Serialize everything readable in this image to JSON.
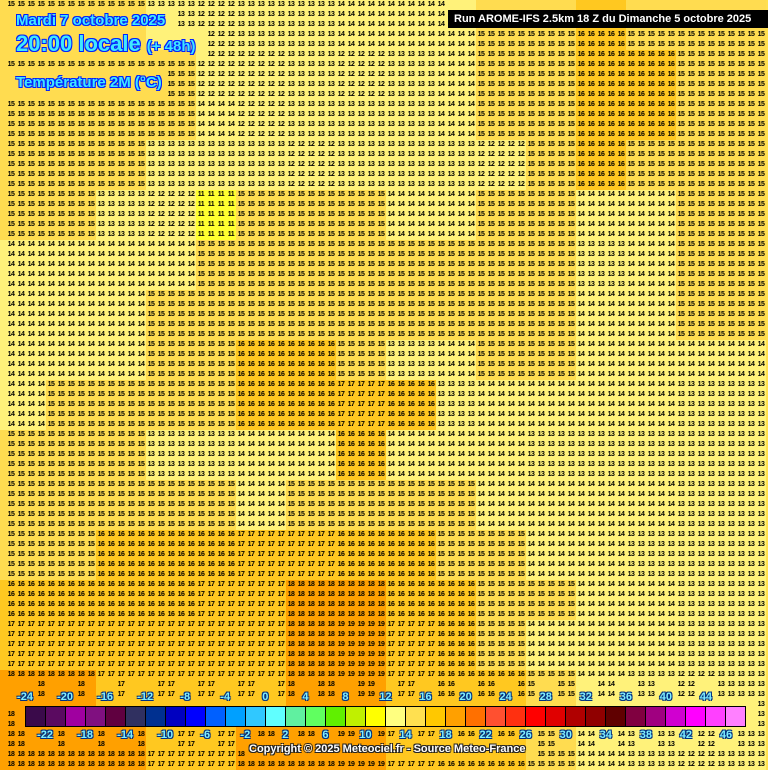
{
  "header": {
    "date": "Mardi 7 octobre 2025",
    "time": "20:00 locale",
    "offset": "(+ 48h)",
    "parameter": "Température 2M (°C)",
    "run": "Run AROME-IFS 2.5km 18 Z du Dimanche 5 octobre 2025"
  },
  "temperature_field_approx": [
    [
      15,
      15,
      15,
      13,
      12,
      13,
      13,
      14,
      14,
      14,
      15,
      15,
      16,
      15,
      15,
      15
    ],
    [
      15,
      15,
      15,
      15,
      12,
      12,
      13,
      12,
      13,
      14,
      15,
      15,
      16,
      16,
      15,
      15
    ],
    [
      15,
      15,
      15,
      15,
      14,
      12,
      13,
      13,
      13,
      14,
      15,
      15,
      16,
      16,
      15,
      15
    ],
    [
      15,
      15,
      15,
      13,
      13,
      13,
      12,
      13,
      13,
      13,
      12,
      15,
      16,
      15,
      15,
      15
    ],
    [
      15,
      15,
      13,
      12,
      11,
      15,
      15,
      15,
      14,
      14,
      15,
      15,
      14,
      14,
      15,
      15
    ],
    [
      14,
      14,
      14,
      14,
      15,
      15,
      15,
      15,
      15,
      15,
      15,
      15,
      13,
      14,
      15,
      15
    ],
    [
      14,
      14,
      14,
      15,
      15,
      15,
      15,
      15,
      15,
      15,
      15,
      15,
      14,
      14,
      15,
      15
    ],
    [
      14,
      14,
      14,
      15,
      15,
      16,
      16,
      15,
      13,
      14,
      15,
      15,
      14,
      14,
      14,
      14
    ],
    [
      14,
      15,
      15,
      15,
      15,
      16,
      16,
      17,
      16,
      13,
      14,
      14,
      14,
      14,
      13,
      13
    ],
    [
      15,
      15,
      15,
      13,
      13,
      14,
      14,
      16,
      14,
      14,
      14,
      13,
      13,
      13,
      13,
      13
    ],
    [
      15,
      15,
      15,
      15,
      15,
      14,
      15,
      15,
      15,
      15,
      14,
      14,
      14,
      14,
      13,
      13
    ],
    [
      15,
      15,
      16,
      16,
      16,
      17,
      17,
      16,
      16,
      15,
      15,
      14,
      14,
      13,
      13,
      13
    ],
    [
      16,
      16,
      16,
      16,
      17,
      17,
      18,
      18,
      16,
      16,
      15,
      15,
      14,
      14,
      13,
      13
    ],
    [
      17,
      17,
      17,
      17,
      17,
      17,
      18,
      19,
      17,
      16,
      15,
      14,
      14,
      14,
      13,
      13
    ],
    [
      18,
      18,
      17,
      17,
      17,
      17,
      18,
      19,
      17,
      16,
      16,
      15,
      14,
      13,
      12,
      13
    ],
    [
      18,
      18,
      18,
      17,
      17,
      18,
      18,
      19,
      17,
      16,
      16,
      15,
      14,
      13,
      12,
      13
    ]
  ],
  "legend": {
    "unit": "°C",
    "bins": [
      -24,
      -22,
      -20,
      -18,
      -16,
      -14,
      -12,
      -10,
      -8,
      -6,
      -4,
      -2,
      0,
      2,
      4,
      6,
      8,
      10,
      12,
      14,
      16,
      18,
      20,
      22,
      24,
      26,
      28,
      30,
      32,
      34,
      36,
      38,
      40,
      42,
      44,
      46
    ],
    "colors": [
      "#3a0a4a",
      "#5a0a60",
      "#a000a0",
      "#801080",
      "#600040",
      "#303060",
      "#003090",
      "#0000c0",
      "#0000ff",
      "#0060ff",
      "#00a0ff",
      "#30c8ff",
      "#60ffff",
      "#60f0a0",
      "#60ff60",
      "#60f000",
      "#c0f000",
      "#ffff00",
      "#ffff80",
      "#ffe050",
      "#ffc800",
      "#ffa000",
      "#ff7000",
      "#ff5030",
      "#ff3010",
      "#ff0000",
      "#e00000",
      "#b00000",
      "#900000",
      "#600000",
      "#800040",
      "#a00080",
      "#d000d0",
      "#ff00ff",
      "#ff40ff",
      "#ff80ff"
    ],
    "top_labels": [
      "-24",
      "-20",
      "-16",
      "-12",
      "-8",
      "-4",
      "0",
      "4",
      "8",
      "12",
      "16",
      "20",
      "24",
      "28",
      "32",
      "36",
      "40",
      "44"
    ],
    "bottom_labels": [
      "-22",
      "-18",
      "-14",
      "-10",
      "-6",
      "-2",
      "2",
      "6",
      "10",
      "14",
      "18",
      "22",
      "26",
      "30",
      "34",
      "38",
      "42",
      "46"
    ]
  },
  "copyright": "Copyright © 2025 Meteociel.fr - Source Meteo-France"
}
